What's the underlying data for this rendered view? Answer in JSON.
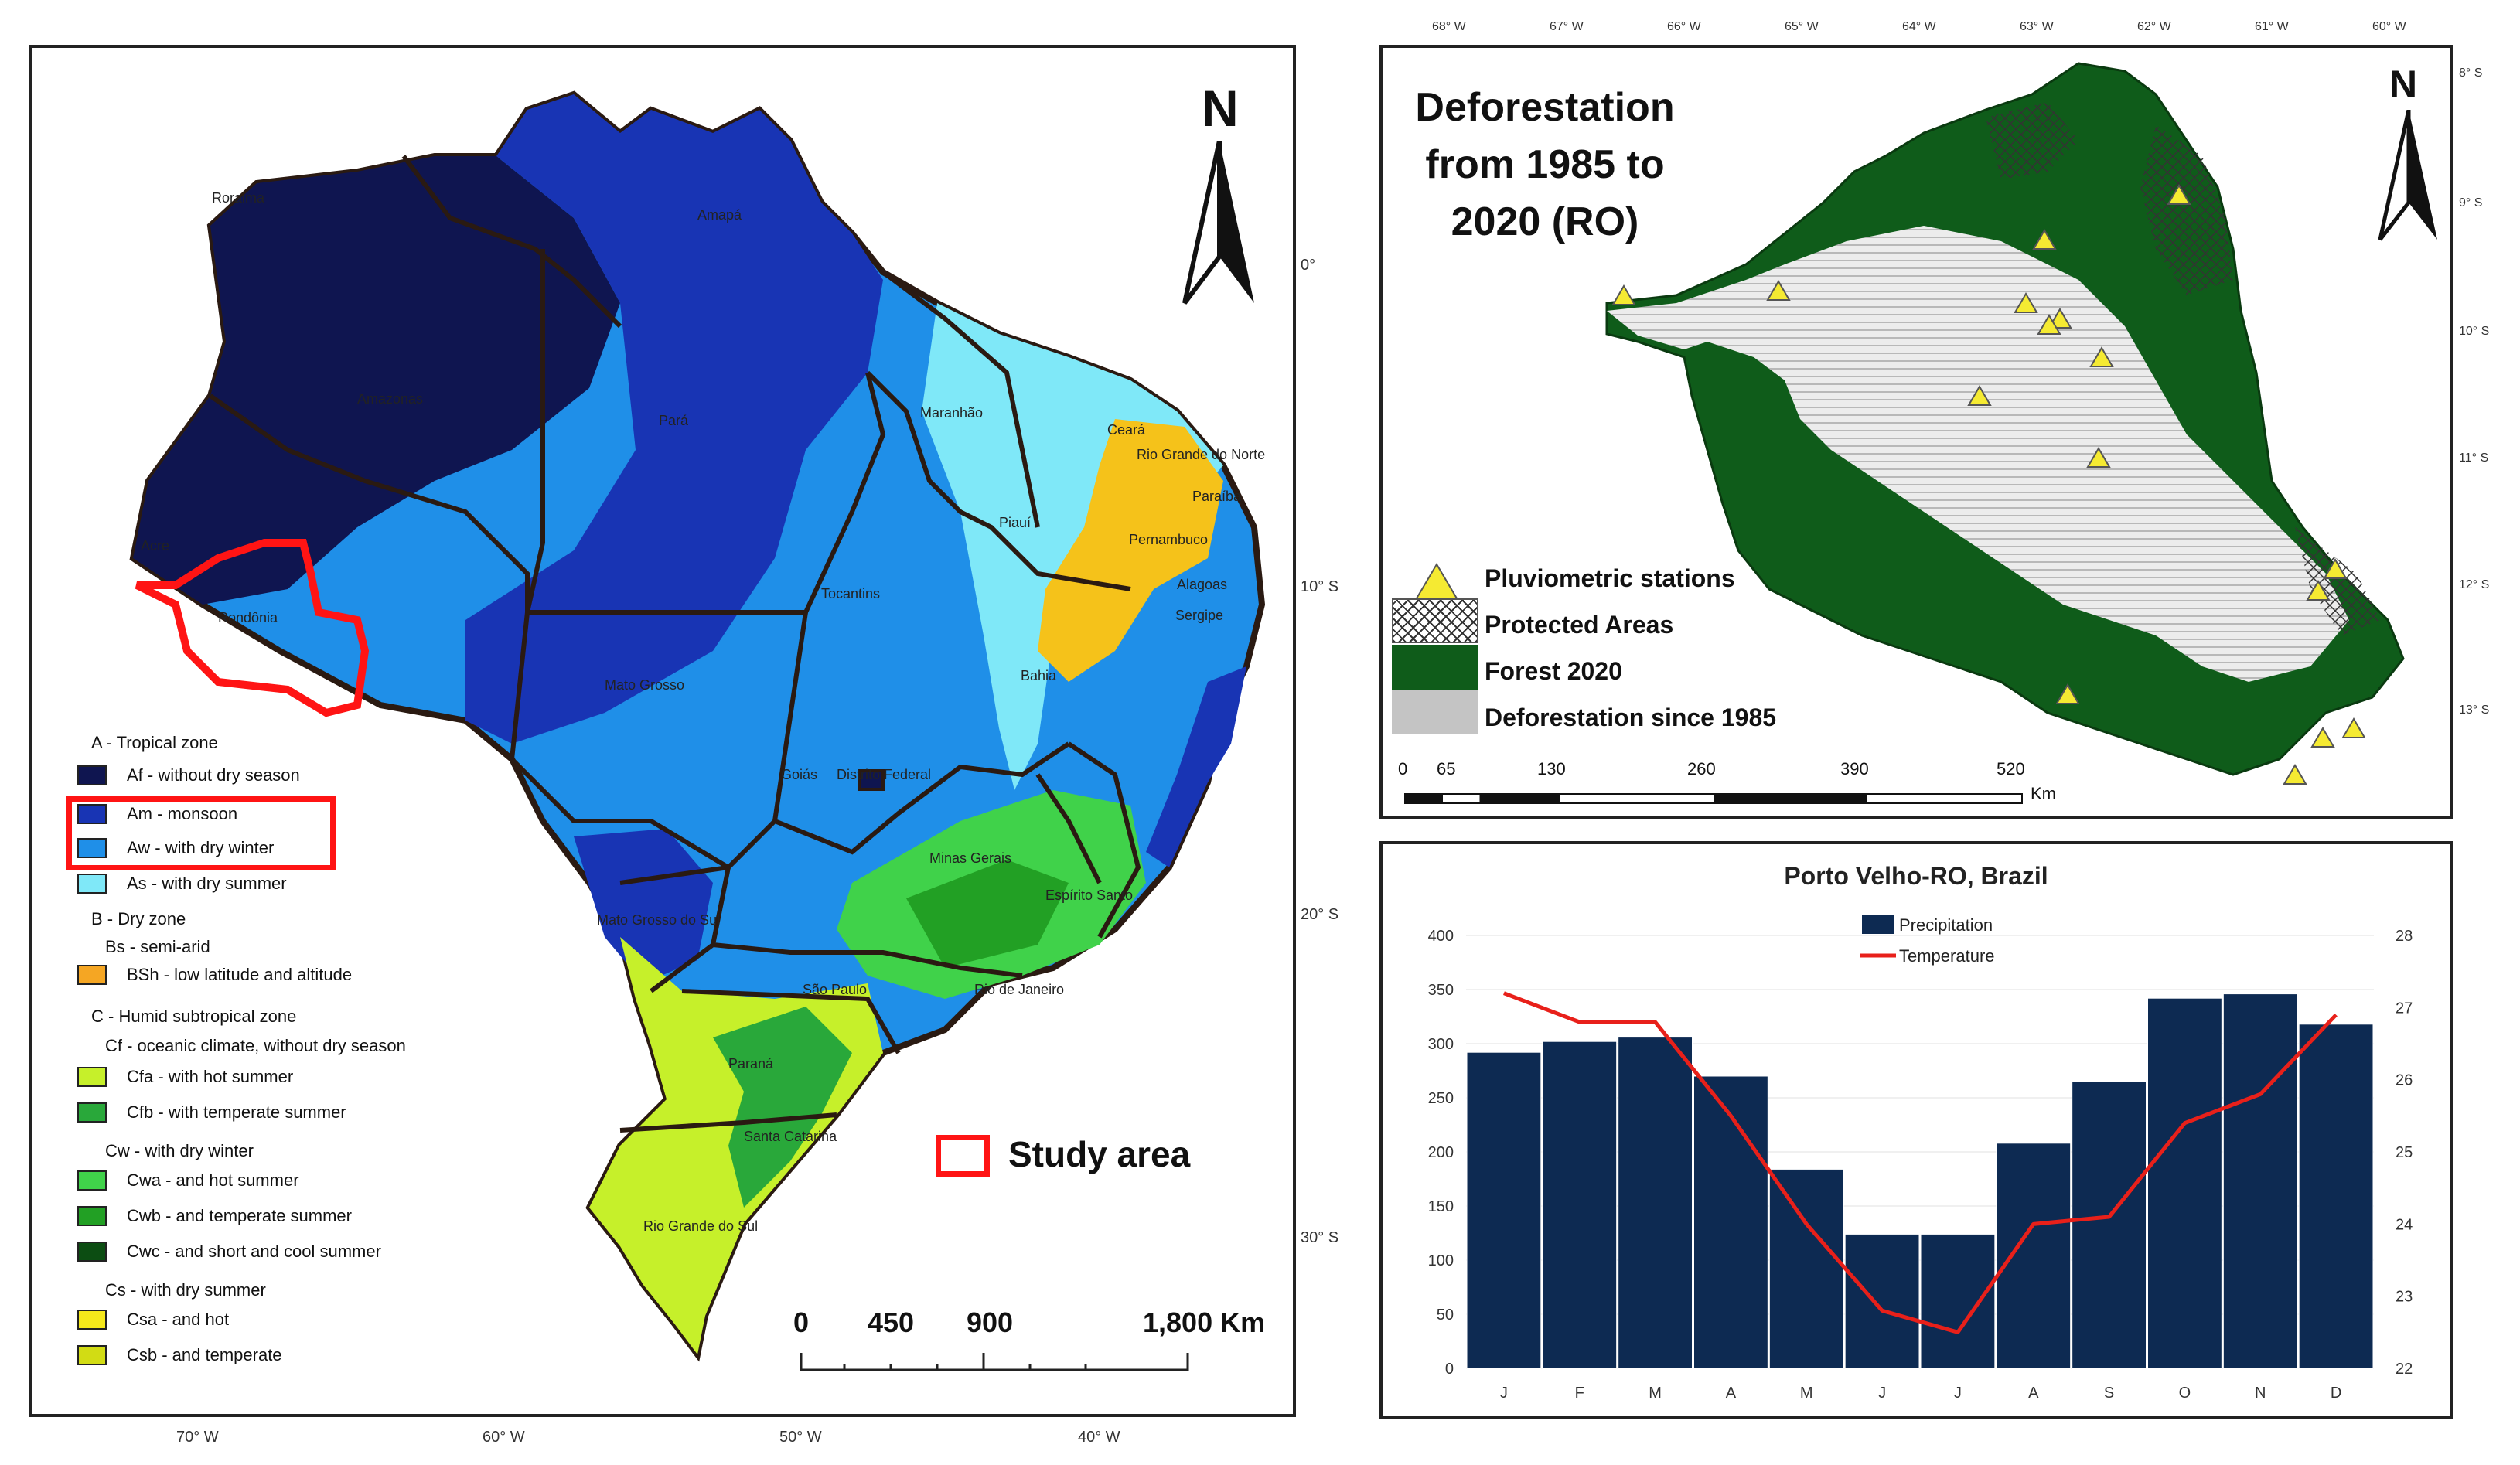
{
  "brazil_map": {
    "lon_ticks": [
      "70° W",
      "60° W",
      "50° W",
      "40° W"
    ],
    "lat_ticks": [
      "0°",
      "10° S",
      "20° S",
      "30° S"
    ],
    "north": "N",
    "states": [
      "Roraima",
      "Amapá",
      "Amazonas",
      "Pará",
      "Maranhão",
      "Ceará",
      "Rio Grande do Norte",
      "Paraíba",
      "Pernambuco",
      "Alagoas",
      "Sergipe",
      "Piauí",
      "Acre",
      "Rondônia",
      "Tocantins",
      "Bahia",
      "Mato Grosso",
      "Goiás",
      "Distrito Federal",
      "Minas Gerais",
      "Espírito Santo",
      "Mato Grosso do Sul",
      "São Paulo",
      "Rio de Janeiro",
      "Paraná",
      "Santa Catarina",
      "Rio Grande do Sul"
    ],
    "study_area_label": "Study area",
    "scale": {
      "labels": [
        "0",
        "450",
        "900",
        "1,800 Km"
      ]
    },
    "legend": {
      "zone_a": "A - Tropical zone",
      "af": "Af - without dry season",
      "am": "Am - monsoon",
      "aw": "Aw - with dry winter",
      "as": "As - with dry summer",
      "zone_b": "B - Dry zone",
      "bs": "Bs - semi-arid",
      "bsh": "BSh - low latitude and altitude",
      "zone_c": "C - Humid subtropical zone",
      "cf": "Cf - oceanic climate, without dry season",
      "cfa": "Cfa - with hot summer",
      "cfb": "Cfb - with temperate summer",
      "cw": "Cw - with dry winter",
      "cwa": "Cwa - and hot summer",
      "cwb": "Cwb - and temperate summer",
      "cwc": "Cwc - and short and cool summer",
      "cs": "Cs - with dry summer",
      "csa": "Csa - and hot",
      "csb": "Csb - and temperate"
    },
    "colors": {
      "af": "#0f1550",
      "am": "#1834b4",
      "aw": "#1f8fe8",
      "as": "#7fe8f8",
      "bsh": "#f5a623",
      "cfa": "#c6f02a",
      "cfb": "#29a83a",
      "cwa": "#40d24a",
      "cwb": "#22a024",
      "cwc": "#0c4d12",
      "csa": "#f5e81a",
      "csb": "#d2dc14"
    }
  },
  "ro_map": {
    "title_lines": [
      "Deforestation",
      "from 1985 to",
      "2020 (RO)"
    ],
    "lon_ticks": [
      "68° W",
      "67° W",
      "66° W",
      "65° W",
      "64° W",
      "63° W",
      "62° W",
      "61° W",
      "60° W"
    ],
    "lat_ticks": [
      "8° S",
      "9° S",
      "10° S",
      "11° S",
      "12° S",
      "13° S"
    ],
    "north": "N",
    "legend": {
      "stations": "Pluviometric stations",
      "protected": "Protected Areas",
      "forest": "Forest 2020",
      "deforestation": "Deforestation since 1985"
    },
    "scale": {
      "labels": [
        "0",
        "65",
        "130",
        "260",
        "390",
        "520"
      ],
      "unit": "Km"
    }
  },
  "chart_data": {
    "type": "bar",
    "title": "Porto Velho-RO, Brazil",
    "categories": [
      "J",
      "F",
      "M",
      "A",
      "M",
      "J",
      "J",
      "A",
      "S",
      "O",
      "N",
      "D"
    ],
    "series": [
      {
        "name": "Precipitation",
        "type": "bar",
        "axis": "left",
        "color": "#0d2a52",
        "values": [
          292,
          302,
          306,
          270,
          184,
          124,
          124,
          208,
          265,
          342,
          346,
          318
        ]
      },
      {
        "name": "Temperature",
        "type": "line",
        "axis": "right",
        "color": "#e8201a",
        "values": [
          27.2,
          26.8,
          26.8,
          25.5,
          24.0,
          22.8,
          22.5,
          24.0,
          24.1,
          25.4,
          25.8,
          26.9
        ]
      }
    ],
    "ylim_left": [
      0,
      400
    ],
    "ylim_right": [
      22,
      28
    ],
    "yticks_left": [
      "0",
      "50",
      "100",
      "150",
      "200",
      "250",
      "300",
      "350",
      "400"
    ],
    "yticks_right": [
      "22",
      "23",
      "24",
      "25",
      "26",
      "27",
      "28"
    ],
    "legend": [
      "Precipitation",
      "Temperature"
    ]
  }
}
